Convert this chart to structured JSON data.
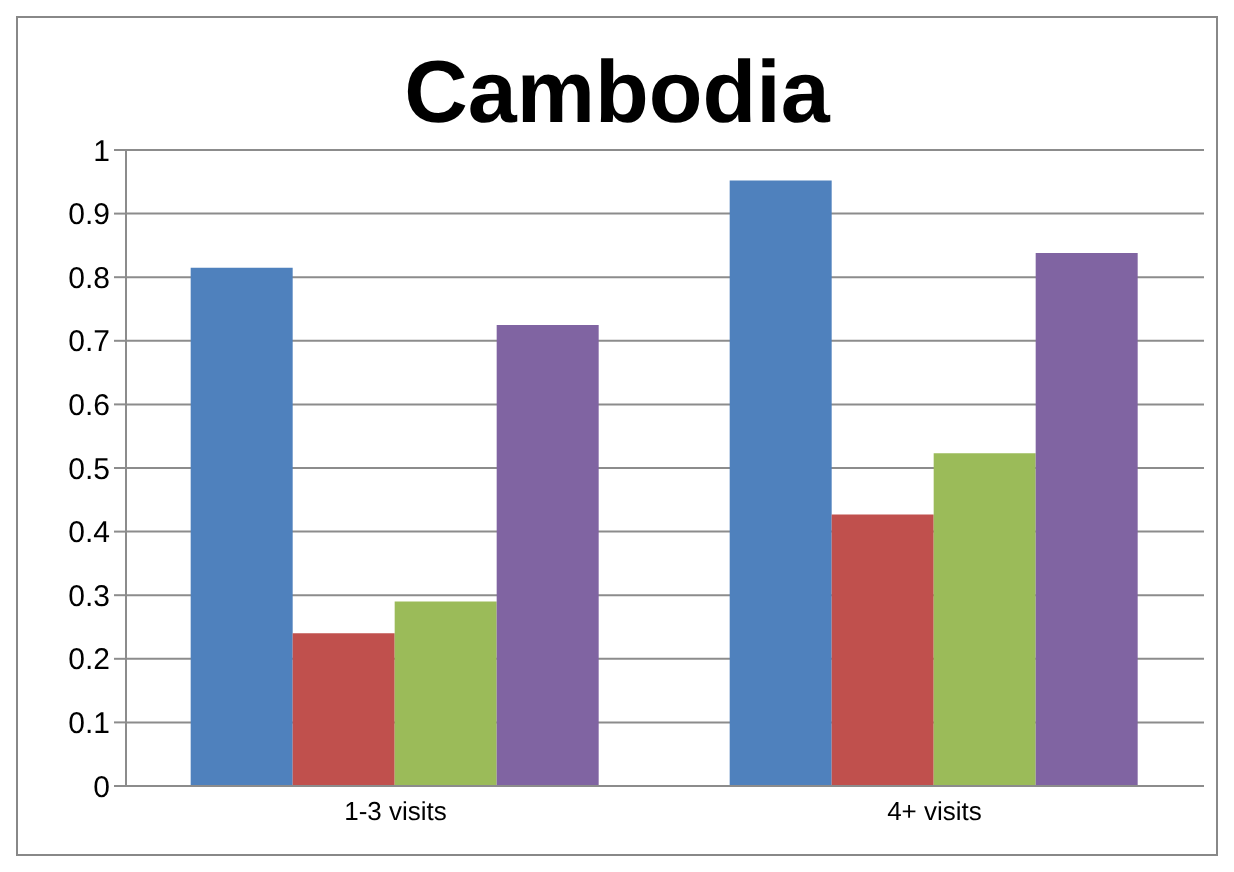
{
  "chart_data": {
    "type": "bar",
    "title": "Cambodia",
    "categories": [
      "1-3 visits",
      "4+ visits"
    ],
    "series": [
      {
        "color": "#4f81bd",
        "values": [
          0.815,
          0.952
        ]
      },
      {
        "color": "#c0504d",
        "values": [
          0.24,
          0.427
        ]
      },
      {
        "color": "#9bbb59",
        "values": [
          0.29,
          0.523
        ]
      },
      {
        "color": "#8064a2",
        "values": [
          0.725,
          0.838
        ]
      }
    ],
    "ylim": [
      0,
      1
    ],
    "yticks": [
      0,
      0.1,
      0.2,
      0.3,
      0.4,
      0.5,
      0.6,
      0.7,
      0.8,
      0.9,
      1
    ],
    "grid": "y",
    "legend": false
  }
}
